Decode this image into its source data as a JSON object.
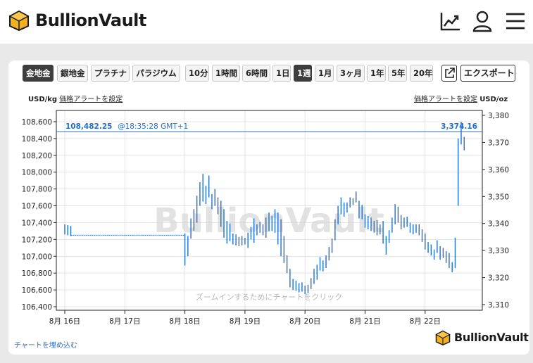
{
  "header": {
    "brand": "BullionVault",
    "icons": [
      "chart-trend-icon",
      "user-icon",
      "hamburger-menu-icon"
    ]
  },
  "toolbar": {
    "metals": [
      "金地金",
      "銀地金",
      "プラチナ",
      "パラジウム"
    ],
    "active_metal": "金地金",
    "ranges": [
      "10分",
      "1時間",
      "6時間",
      "1日",
      "1週",
      "1月",
      "3ヶ月",
      "1年",
      "5年",
      "20年"
    ],
    "active_range": "1週",
    "export_label": "エクスポート",
    "external_link_icon": "external-link-icon"
  },
  "units": {
    "left_unit": "USD/kg",
    "left_alert": "価格アラートを設定",
    "right_unit": "USD/oz",
    "right_alert": "価格アラートを設定"
  },
  "overlay": {
    "current_price_kg": "108,482.25",
    "current_time": "@18:35:28 GMT+1",
    "current_price_oz": "3,374.16",
    "watermark": "BullionVault",
    "zoom_hint": "ズームインするためにチャートをクリック"
  },
  "footer": {
    "embed_link": "チャートを埋め込む",
    "brand": "BullionVault"
  },
  "colors": {
    "series": "#1f6fd1",
    "active_button": "#3d3d3d",
    "link": "#2f6cc0",
    "logo_gold": "#f2b01e"
  },
  "chart_data": {
    "type": "ohlc",
    "left_axis": {
      "label": "USD/kg",
      "ticks": [
        "108,600",
        "108,400",
        "108,200",
        "108,000",
        "107,800",
        "107,600",
        "107,400",
        "107,200",
        "107,000",
        "106,800",
        "106,600",
        "106,400"
      ],
      "range": [
        106350,
        108750
      ]
    },
    "right_axis": {
      "label": "USD/oz",
      "ticks": [
        "3,380",
        "3,370",
        "3,360",
        "3,350",
        "3,340",
        "3,330",
        "3,320",
        "3,310"
      ],
      "range": [
        3308,
        3382
      ]
    },
    "x_ticks": [
      "8月 16日",
      "8月 17日",
      "8月 18日",
      "8月 19日",
      "8月 20日",
      "8月 21日",
      "8月 22日"
    ],
    "current_value": 108482.25,
    "grid": true,
    "series": [
      {
        "values_usd_kg": [
          [
            0.0,
            107380,
            107260
          ],
          [
            0.05,
            107370,
            107250
          ],
          [
            0.1,
            107360,
            107240
          ],
          [
            2.0,
            107270,
            106890
          ],
          [
            2.05,
            107240,
            107000
          ],
          [
            2.1,
            107450,
            107210
          ],
          [
            2.15,
            107560,
            107300
          ],
          [
            2.2,
            107720,
            107400
          ],
          [
            2.25,
            107880,
            107600
          ],
          [
            2.3,
            107980,
            107650
          ],
          [
            2.35,
            107840,
            107620
          ],
          [
            2.4,
            107960,
            107700
          ],
          [
            2.45,
            107740,
            107560
          ],
          [
            2.5,
            107800,
            107600
          ],
          [
            2.55,
            107700,
            107500
          ],
          [
            2.6,
            107660,
            107350
          ],
          [
            2.65,
            107560,
            107220
          ],
          [
            2.7,
            107420,
            107150
          ],
          [
            2.75,
            107390,
            107180
          ],
          [
            2.8,
            107270,
            107140
          ],
          [
            2.85,
            107260,
            107130
          ],
          [
            2.9,
            107230,
            107120
          ],
          [
            2.95,
            107240,
            107130
          ],
          [
            3.0,
            107220,
            107140
          ],
          [
            3.05,
            107280,
            107100
          ],
          [
            3.1,
            107350,
            107200
          ],
          [
            3.15,
            107450,
            107160
          ],
          [
            3.2,
            107380,
            107250
          ],
          [
            3.25,
            107410,
            107280
          ],
          [
            3.3,
            107380,
            107250
          ],
          [
            3.35,
            107460,
            107220
          ],
          [
            3.4,
            107520,
            107300
          ],
          [
            3.45,
            107480,
            107300
          ],
          [
            3.5,
            107560,
            107280
          ],
          [
            3.55,
            107520,
            107140
          ],
          [
            3.6,
            107440,
            107000
          ],
          [
            3.65,
            107240,
            106920
          ],
          [
            3.7,
            107010,
            106800
          ],
          [
            3.75,
            106850,
            106630
          ],
          [
            3.8,
            106730,
            106600
          ],
          [
            3.85,
            106710,
            106590
          ],
          [
            3.9,
            106680,
            106570
          ],
          [
            3.95,
            106690,
            106580
          ],
          [
            4.0,
            106650,
            106550
          ],
          [
            4.05,
            106660,
            106560
          ],
          [
            4.1,
            106740,
            106610
          ],
          [
            4.15,
            106850,
            106670
          ],
          [
            4.2,
            106900,
            106720
          ],
          [
            4.25,
            106990,
            106830
          ],
          [
            4.3,
            106950,
            106820
          ],
          [
            4.35,
            107010,
            106860
          ],
          [
            4.4,
            107110,
            106950
          ],
          [
            4.45,
            107210,
            107040
          ],
          [
            4.5,
            107440,
            107190
          ],
          [
            4.55,
            107600,
            107380
          ],
          [
            4.6,
            107700,
            107500
          ],
          [
            4.65,
            107640,
            107470
          ],
          [
            4.7,
            107640,
            107520
          ],
          [
            4.75,
            107700,
            107580
          ],
          [
            4.8,
            107690,
            107610
          ],
          [
            4.85,
            107770,
            107640
          ],
          [
            4.9,
            107660,
            107450
          ],
          [
            4.95,
            107610,
            107440
          ],
          [
            5.0,
            107500,
            107340
          ],
          [
            5.05,
            107480,
            107320
          ],
          [
            5.1,
            107460,
            107300
          ],
          [
            5.15,
            107420,
            107280
          ],
          [
            5.2,
            107430,
            107250
          ],
          [
            5.25,
            107380,
            107260
          ],
          [
            5.3,
            107420,
            107150
          ],
          [
            5.35,
            107240,
            107020
          ],
          [
            5.4,
            107310,
            107160
          ],
          [
            5.45,
            107460,
            107280
          ],
          [
            5.5,
            107620,
            107380
          ],
          [
            5.55,
            107590,
            107400
          ],
          [
            5.6,
            107490,
            107320
          ],
          [
            5.65,
            107460,
            107340
          ],
          [
            5.7,
            107470,
            107350
          ],
          [
            5.75,
            107400,
            107280
          ],
          [
            5.8,
            107380,
            107260
          ],
          [
            5.85,
            107380,
            107280
          ],
          [
            5.9,
            107380,
            107250
          ],
          [
            5.95,
            107320,
            107170
          ],
          [
            6.0,
            107270,
            107080
          ],
          [
            6.05,
            107170,
            107040
          ],
          [
            6.1,
            107140,
            107010
          ],
          [
            6.15,
            107080,
            106960
          ],
          [
            6.2,
            107190,
            107040
          ],
          [
            6.25,
            107120,
            106960
          ],
          [
            6.3,
            107100,
            106980
          ],
          [
            6.35,
            107060,
            106920
          ],
          [
            6.4,
            107040,
            106860
          ],
          [
            6.45,
            106930,
            106810
          ],
          [
            6.5,
            107220,
            106860
          ],
          [
            6.55,
            108400,
            107600
          ],
          [
            6.6,
            108600,
            108330
          ],
          [
            6.65,
            108420,
            108260
          ]
        ],
        "flat_segment": {
          "from_x": 0.1,
          "to_x": 2.0,
          "value": 107250
        }
      }
    ]
  }
}
